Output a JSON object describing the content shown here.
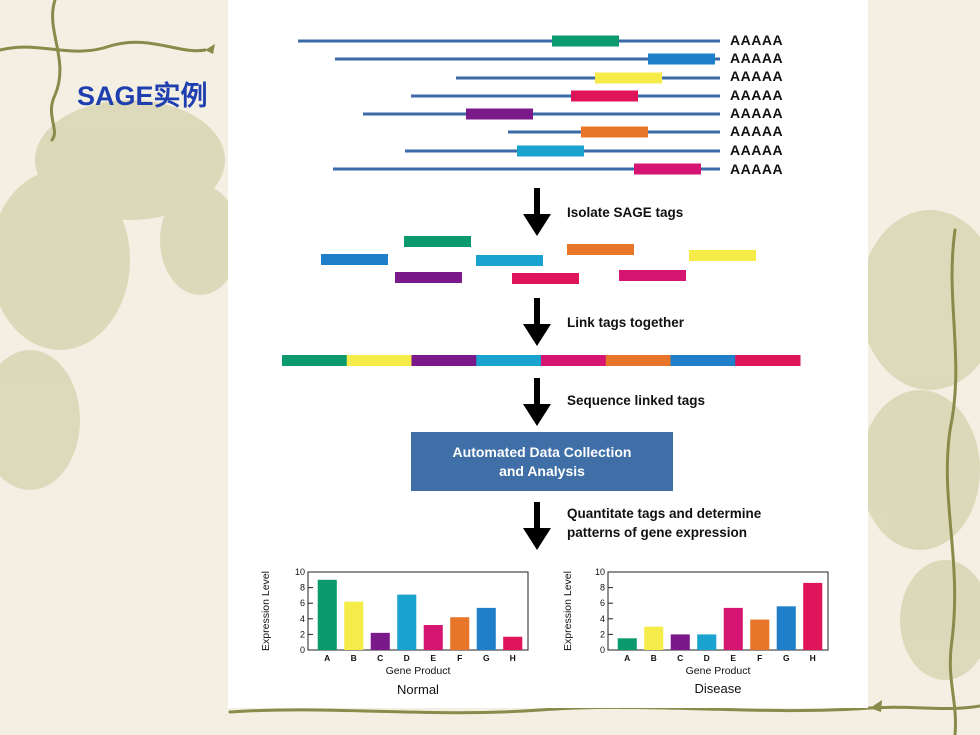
{
  "slide": {
    "title": "SAGE实例"
  },
  "diagram": {
    "poly_a": [
      "AAAAA",
      "AAAAA",
      "AAAAA",
      "AAAAA",
      "AAAAA",
      "AAAAA",
      "AAAAA",
      "AAAAA"
    ],
    "tag_colors": [
      "#0a9a6e",
      "#1f7fc8",
      "#f5ec4a",
      "#e0145a",
      "#7a1a8a",
      "#e8762a",
      "#1aa3cf",
      "#d61572"
    ],
    "line_color": "#3a6aa8",
    "steps": {
      "isolate": "Isolate SAGE tags",
      "link": "Link tags together",
      "sequence": "Sequence linked tags",
      "quantitate_1": "Quantitate tags and determine",
      "quantitate_2": "patterns of gene expression"
    },
    "analysis_box": {
      "line1": "Automated Data Collection",
      "line2": "and Analysis",
      "color": "#3f6fa6"
    },
    "linked_tag_order": [
      "#0a9a6e",
      "#f5ec4a",
      "#7a1a8a",
      "#1aa3cf",
      "#d61572",
      "#e8762a",
      "#1f7fc8",
      "#e0145a"
    ]
  },
  "chart_data": [
    {
      "type": "bar",
      "title": "Normal",
      "xlabel": "Gene Product",
      "ylabel": "Expression Level",
      "categories": [
        "A",
        "B",
        "C",
        "D",
        "E",
        "F",
        "G",
        "H"
      ],
      "values": [
        9,
        6.2,
        2.2,
        7.1,
        3.2,
        4.2,
        5.4,
        1.7
      ],
      "colors": [
        "#0a9a6e",
        "#f5ec4a",
        "#7a1a8a",
        "#1aa3cf",
        "#d61572",
        "#e8762a",
        "#1f7fc8",
        "#e0145a"
      ],
      "ylim": [
        0,
        10
      ],
      "yticks": [
        "0",
        "2",
        "4",
        "6",
        "8",
        "10"
      ]
    },
    {
      "type": "bar",
      "title": "Disease",
      "xlabel": "Gene Product",
      "ylabel": "Expression Level",
      "categories": [
        "A",
        "B",
        "C",
        "D",
        "E",
        "F",
        "G",
        "H"
      ],
      "values": [
        1.5,
        3,
        2,
        2,
        5.4,
        3.9,
        5.6,
        8.6
      ],
      "colors": [
        "#0a9a6e",
        "#f5ec4a",
        "#7a1a8a",
        "#1aa3cf",
        "#d61572",
        "#e8762a",
        "#1f7fc8",
        "#e0145a"
      ],
      "ylim": [
        0,
        10
      ],
      "yticks": [
        "0",
        "2",
        "4",
        "6",
        "8",
        "10"
      ]
    }
  ]
}
